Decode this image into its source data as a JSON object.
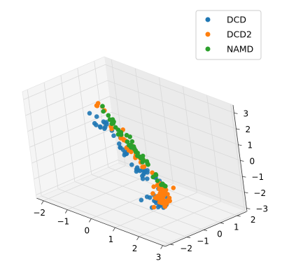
{
  "chart_data": {
    "type": "scatter",
    "projection": "3d",
    "grid": true,
    "legend_position": "top-right",
    "x_ticks": [
      "−2",
      "−1",
      "0",
      "1",
      "2",
      "3"
    ],
    "y_ticks": [
      "−2",
      "−1",
      "0",
      "1",
      "2"
    ],
    "z_ticks": [
      "−3",
      "−2",
      "−1",
      "0",
      "1",
      "2",
      "3"
    ],
    "xlim": [
      -2.3,
      3.1
    ],
    "ylim": [
      -2.3,
      2.6
    ],
    "zlim": [
      -3.2,
      3.5
    ],
    "series": [
      {
        "name": "DCD",
        "color": "#1f77b4",
        "points": []
      },
      {
        "name": "DCD2",
        "color": "#ff7f0e",
        "points": []
      },
      {
        "name": "NAMD",
        "color": "#2ca02c",
        "points": []
      }
    ]
  }
}
